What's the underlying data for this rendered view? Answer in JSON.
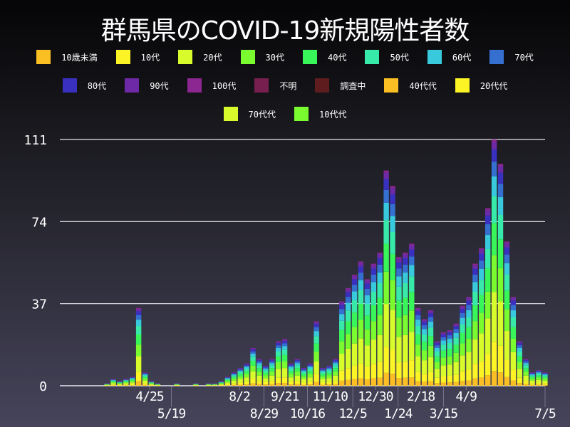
{
  "chart_data": {
    "type": "bar",
    "stacked": true,
    "title": "群馬県のCOVID-19新規陽性者数",
    "legend": [
      {
        "name": "10歳未満",
        "color": "#fbbf24"
      },
      {
        "name": "10代",
        "color": "#fdf425"
      },
      {
        "name": "20代",
        "color": "#d8fb2b"
      },
      {
        "name": "30代",
        "color": "#7afb30"
      },
      {
        "name": "40代",
        "color": "#38f55a"
      },
      {
        "name": "50代",
        "color": "#38eaa9"
      },
      {
        "name": "60代",
        "color": "#38c9dc"
      },
      {
        "name": "70代",
        "color": "#3570d0"
      },
      {
        "name": "80代",
        "color": "#3a30c0"
      },
      {
        "name": "90代",
        "color": "#6e2aa6"
      },
      {
        "name": "100代",
        "color": "#8c2690"
      },
      {
        "name": "不明",
        "color": "#771f4e"
      },
      {
        "name": "調査中",
        "color": "#5e1c1e"
      },
      {
        "name": "40代代",
        "color": "#fbbf24"
      },
      {
        "name": "20代代",
        "color": "#fdf425"
      },
      {
        "name": "70代代",
        "color": "#d8fb2b"
      },
      {
        "name": "10代代",
        "color": "#7afb30"
      }
    ],
    "legend_placement": "top",
    "ylim": [
      0,
      111
    ],
    "yticks": [
      "0",
      "37",
      "74",
      "111"
    ],
    "xlim": [
      "2020-01-17",
      "2021-07-05"
    ],
    "xticks": [
      {
        "date": "2020-04-25",
        "label": "4/25"
      },
      {
        "date": "2020-05-19",
        "label": "5/19"
      },
      {
        "date": "2020-08-02",
        "label": "8/2"
      },
      {
        "date": "2020-08-29",
        "label": "8/29"
      },
      {
        "date": "2020-09-21",
        "label": "9/21"
      },
      {
        "date": "2020-10-16",
        "label": "10/16"
      },
      {
        "date": "2020-11-10",
        "label": "11/10"
      },
      {
        "date": "2020-12-05",
        "label": "12/5"
      },
      {
        "date": "2020-12-30",
        "label": "12/30"
      },
      {
        "date": "2021-01-24",
        "label": "1/24"
      },
      {
        "date": "2021-02-18",
        "label": "2/18"
      },
      {
        "date": "2021-03-15",
        "label": "3/15"
      },
      {
        "date": "2021-04-09",
        "label": "4/9"
      },
      {
        "date": "2021-07-05",
        "label": "7/5"
      }
    ],
    "grid": "horizontal",
    "x": [
      "2020-01-17",
      "2020-01-24",
      "2020-01-31",
      "2020-02-07",
      "2020-02-14",
      "2020-02-21",
      "2020-02-28",
      "2020-03-06",
      "2020-03-13",
      "2020-03-20",
      "2020-03-27",
      "2020-04-03",
      "2020-04-10",
      "2020-04-17",
      "2020-04-24",
      "2020-05-01",
      "2020-05-08",
      "2020-05-15",
      "2020-05-22",
      "2020-05-29",
      "2020-06-05",
      "2020-06-12",
      "2020-06-19",
      "2020-06-26",
      "2020-07-03",
      "2020-07-10",
      "2020-07-17",
      "2020-07-24",
      "2020-07-31",
      "2020-08-07",
      "2020-08-14",
      "2020-08-21",
      "2020-08-28",
      "2020-09-04",
      "2020-09-11",
      "2020-09-18",
      "2020-09-25",
      "2020-10-02",
      "2020-10-09",
      "2020-10-16",
      "2020-10-23",
      "2020-10-30",
      "2020-11-06",
      "2020-11-13",
      "2020-11-20",
      "2020-11-27",
      "2020-12-04",
      "2020-12-11",
      "2020-12-18",
      "2020-12-25",
      "2021-01-01",
      "2021-01-08",
      "2021-01-15",
      "2021-01-22",
      "2021-01-29",
      "2021-02-05",
      "2021-02-12",
      "2021-02-19",
      "2021-02-26",
      "2021-03-05",
      "2021-03-12",
      "2021-03-19",
      "2021-03-26",
      "2021-04-02",
      "2021-04-09",
      "2021-04-16",
      "2021-04-23",
      "2021-04-30",
      "2021-05-07",
      "2021-05-14",
      "2021-05-21",
      "2021-05-28",
      "2021-06-04",
      "2021-06-11",
      "2021-06-18",
      "2021-06-25",
      "2021-07-02"
    ],
    "totals": [
      0,
      0,
      0,
      0,
      0,
      0,
      0,
      1,
      3,
      2,
      3,
      4,
      35,
      6,
      2,
      1,
      0,
      0,
      1,
      0,
      0,
      1,
      0,
      1,
      1,
      2,
      4,
      6,
      8,
      10,
      17,
      12,
      9,
      12,
      20,
      21,
      10,
      12,
      8,
      10,
      29,
      8,
      9,
      12,
      38,
      44,
      50,
      56,
      48,
      55,
      60,
      97,
      90,
      58,
      60,
      64,
      35,
      30,
      34,
      20,
      24,
      25,
      28,
      36,
      40,
      55,
      62,
      80,
      111,
      100,
      65,
      40,
      20,
      12,
      6,
      7,
      6
    ]
  }
}
